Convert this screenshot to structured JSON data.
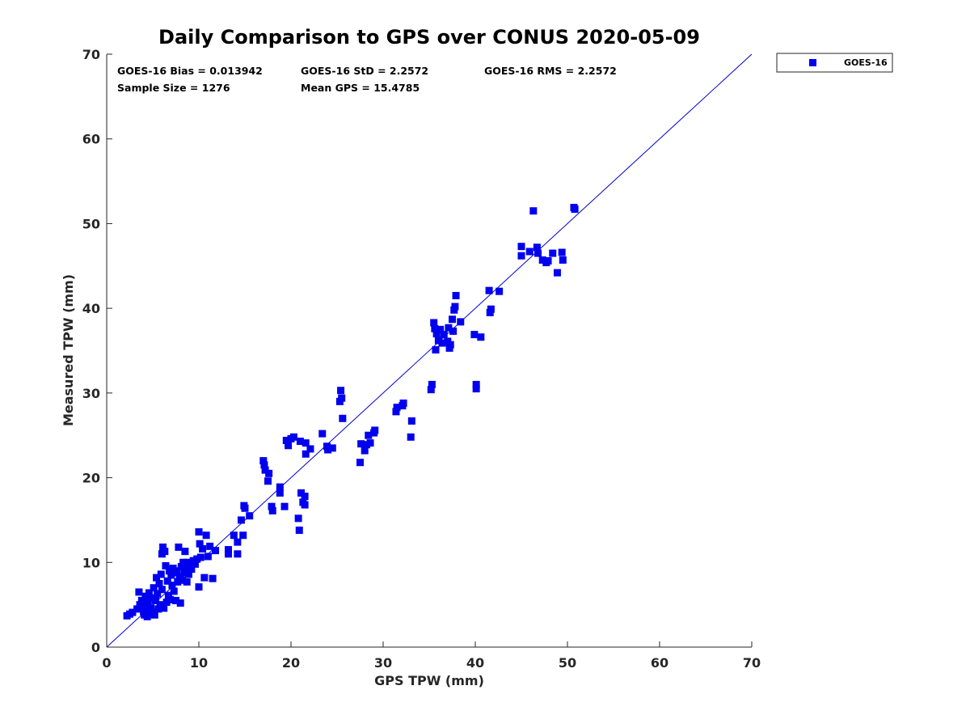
{
  "chart_data": {
    "type": "scatter",
    "title": "Daily Comparison to GPS over CONUS 2020-05-09",
    "xlabel": "GPS TPW (mm)",
    "ylabel": "Measured TPW (mm)",
    "xlim": [
      0,
      70
    ],
    "ylim": [
      0,
      70
    ],
    "xticks": [
      "0",
      "10",
      "20",
      "30",
      "40",
      "50",
      "60",
      "70"
    ],
    "yticks": [
      "0",
      "10",
      "20",
      "30",
      "40",
      "50",
      "60",
      "70"
    ],
    "legend": {
      "position": "outside-top-right",
      "entries": [
        "GOES-16"
      ]
    },
    "stats": {
      "bias": "GOES-16 Bias = 0.013942",
      "std": "GOES-16 StD = 2.2572",
      "rms": "GOES-16 RMS = 2.2572",
      "sample": "Sample Size = 1276",
      "mean": "Mean GPS = 15.4785"
    },
    "reference_line": {
      "from": [
        0,
        0
      ],
      "to": [
        70,
        70
      ]
    },
    "colors": {
      "series": "#0000ee",
      "line": "#0000cc",
      "axis": "#262626"
    },
    "series": [
      {
        "name": "GOES-16",
        "marker": "square",
        "points": [
          [
            2.2,
            3.7
          ],
          [
            2.5,
            3.9
          ],
          [
            2.8,
            4.1
          ],
          [
            3.3,
            4.5
          ],
          [
            3.5,
            6.5
          ],
          [
            3.6,
            5.0
          ],
          [
            3.8,
            5.5
          ],
          [
            4.0,
            4.2
          ],
          [
            4.1,
            3.8
          ],
          [
            4.2,
            6.0
          ],
          [
            4.3,
            4.8
          ],
          [
            4.4,
            3.6
          ],
          [
            4.5,
            5.2
          ],
          [
            4.6,
            6.4
          ],
          [
            4.7,
            3.9
          ],
          [
            4.8,
            4.6
          ],
          [
            4.9,
            5.8
          ],
          [
            5.0,
            4.1
          ],
          [
            5.1,
            7.0
          ],
          [
            5.2,
            3.8
          ],
          [
            5.3,
            5.5
          ],
          [
            5.4,
            8.2
          ],
          [
            5.5,
            6.3
          ],
          [
            5.6,
            4.5
          ],
          [
            5.7,
            7.5
          ],
          [
            5.8,
            5.0
          ],
          [
            5.9,
            8.6
          ],
          [
            6.0,
            6.8
          ],
          [
            6.0,
            11.0
          ],
          [
            6.1,
            11.8
          ],
          [
            6.2,
            4.6
          ],
          [
            6.3,
            11.3
          ],
          [
            6.4,
            9.6
          ],
          [
            6.5,
            5.3
          ],
          [
            6.6,
            7.8
          ],
          [
            6.7,
            6.1
          ],
          [
            6.8,
            9.0
          ],
          [
            6.9,
            5.6
          ],
          [
            7.0,
            8.5
          ],
          [
            7.1,
            7.3
          ],
          [
            7.2,
            9.3
          ],
          [
            7.3,
            6.6
          ],
          [
            7.4,
            8.8
          ],
          [
            7.5,
            5.5
          ],
          [
            7.6,
            9.0
          ],
          [
            7.7,
            7.7
          ],
          [
            7.8,
            11.8
          ],
          [
            7.9,
            8.3
          ],
          [
            8.0,
            5.2
          ],
          [
            8.1,
            9.5
          ],
          [
            8.2,
            7.9
          ],
          [
            8.3,
            10.0
          ],
          [
            8.4,
            8.8
          ],
          [
            8.5,
            11.3
          ],
          [
            8.6,
            9.2
          ],
          [
            8.7,
            7.7
          ],
          [
            8.8,
            10.0
          ],
          [
            8.9,
            8.6
          ],
          [
            9.0,
            9.8
          ],
          [
            9.2,
            9.2
          ],
          [
            9.4,
            10.2
          ],
          [
            9.6,
            9.8
          ],
          [
            9.8,
            10.4
          ],
          [
            10.0,
            7.1
          ],
          [
            10.0,
            13.6
          ],
          [
            10.1,
            12.2
          ],
          [
            10.2,
            10.6
          ],
          [
            10.4,
            11.6
          ],
          [
            10.6,
            8.2
          ],
          [
            10.8,
            13.2
          ],
          [
            11.0,
            10.7
          ],
          [
            11.2,
            11.9
          ],
          [
            11.5,
            8.1
          ],
          [
            11.8,
            11.4
          ],
          [
            13.2,
            11.5
          ],
          [
            13.2,
            11.0
          ],
          [
            13.8,
            13.2
          ],
          [
            14.2,
            11.0
          ],
          [
            14.2,
            12.4
          ],
          [
            14.6,
            15.0
          ],
          [
            14.8,
            13.2
          ],
          [
            14.9,
            16.7
          ],
          [
            15.0,
            16.4
          ],
          [
            15.5,
            15.5
          ],
          [
            17.0,
            22.0
          ],
          [
            17.1,
            21.5
          ],
          [
            17.2,
            20.9
          ],
          [
            17.5,
            19.6
          ],
          [
            17.6,
            20.5
          ],
          [
            17.9,
            16.6
          ],
          [
            18.0,
            16.1
          ],
          [
            18.8,
            18.9
          ],
          [
            18.8,
            18.2
          ],
          [
            19.3,
            16.6
          ],
          [
            19.5,
            24.4
          ],
          [
            19.7,
            23.8
          ],
          [
            20.0,
            24.6
          ],
          [
            20.3,
            24.8
          ],
          [
            20.8,
            15.2
          ],
          [
            20.9,
            13.8
          ],
          [
            21.0,
            24.3
          ],
          [
            21.1,
            18.2
          ],
          [
            21.3,
            17.1
          ],
          [
            21.5,
            17.8
          ],
          [
            21.5,
            16.8
          ],
          [
            21.6,
            24.1
          ],
          [
            21.6,
            22.8
          ],
          [
            22.1,
            23.4
          ],
          [
            23.4,
            25.2
          ],
          [
            23.9,
            23.7
          ],
          [
            24.0,
            23.3
          ],
          [
            24.5,
            23.5
          ],
          [
            25.3,
            29.0
          ],
          [
            25.4,
            30.3
          ],
          [
            25.5,
            29.4
          ],
          [
            25.6,
            27.0
          ],
          [
            27.5,
            21.8
          ],
          [
            27.6,
            24.0
          ],
          [
            28.0,
            23.2
          ],
          [
            28.2,
            23.9
          ],
          [
            28.4,
            25.0
          ],
          [
            28.6,
            24.1
          ],
          [
            29.0,
            25.3
          ],
          [
            29.1,
            25.6
          ],
          [
            31.4,
            27.8
          ],
          [
            31.5,
            28.3
          ],
          [
            32.1,
            28.5
          ],
          [
            32.2,
            28.8
          ],
          [
            33.0,
            24.8
          ],
          [
            33.1,
            26.7
          ],
          [
            35.2,
            30.4
          ],
          [
            35.3,
            31.0
          ],
          [
            35.5,
            38.3
          ],
          [
            35.6,
            37.6
          ],
          [
            35.7,
            35.1
          ],
          [
            35.8,
            37.0
          ],
          [
            36.0,
            36.2
          ],
          [
            36.2,
            37.5
          ],
          [
            36.4,
            35.9
          ],
          [
            36.6,
            36.9
          ],
          [
            37.0,
            36.1
          ],
          [
            37.1,
            37.7
          ],
          [
            37.2,
            35.3
          ],
          [
            37.3,
            35.7
          ],
          [
            37.5,
            38.7
          ],
          [
            37.6,
            37.3
          ],
          [
            37.7,
            39.8
          ],
          [
            37.8,
            40.2
          ],
          [
            37.9,
            41.5
          ],
          [
            38.4,
            38.4
          ],
          [
            39.9,
            36.9
          ],
          [
            40.1,
            31.0
          ],
          [
            40.1,
            30.5
          ],
          [
            40.6,
            36.6
          ],
          [
            41.5,
            42.1
          ],
          [
            41.6,
            39.5
          ],
          [
            41.7,
            39.9
          ],
          [
            42.6,
            42.0
          ],
          [
            45.0,
            47.3
          ],
          [
            45.0,
            46.2
          ],
          [
            45.9,
            46.7
          ],
          [
            46.3,
            51.5
          ],
          [
            46.7,
            47.2
          ],
          [
            46.8,
            46.5
          ],
          [
            47.3,
            45.7
          ],
          [
            47.7,
            45.4
          ],
          [
            47.9,
            45.6
          ],
          [
            48.4,
            46.5
          ],
          [
            48.9,
            44.2
          ],
          [
            49.4,
            46.6
          ],
          [
            49.5,
            45.7
          ],
          [
            50.7,
            51.9
          ],
          [
            50.8,
            51.7
          ]
        ]
      }
    ]
  }
}
